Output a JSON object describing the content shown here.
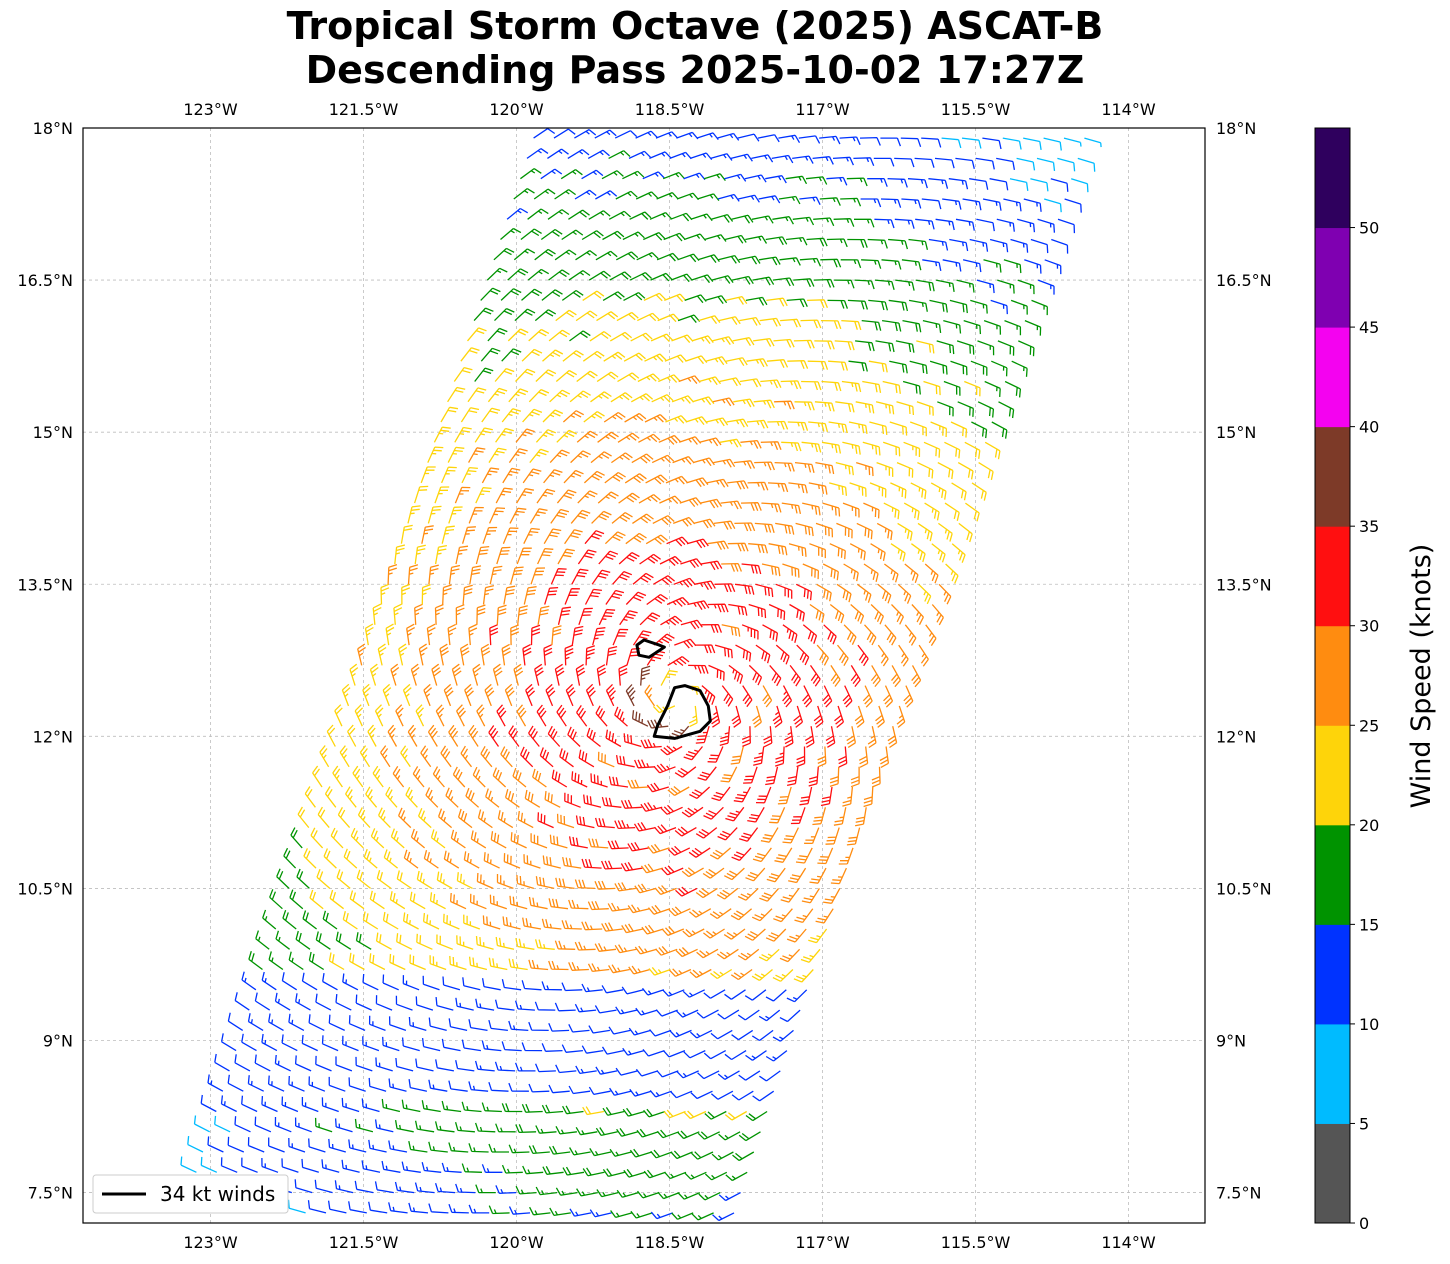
{
  "figure": {
    "title_line1": "Tropical Storm Octave (2025) ASCAT-B",
    "title_line2": "Descending Pass 2025-10-02 17:27Z"
  },
  "map": {
    "lon_range": [
      -124.25,
      -113.25
    ],
    "lat_range": [
      7.2,
      18.0
    ],
    "lon_ticks": [
      {
        "value": -123.0,
        "label": "123°W"
      },
      {
        "value": -121.5,
        "label": "121.5°W"
      },
      {
        "value": -120.0,
        "label": "120°W"
      },
      {
        "value": -118.5,
        "label": "118.5°W"
      },
      {
        "value": -117.0,
        "label": "117°W"
      },
      {
        "value": -115.5,
        "label": "115.5°W"
      },
      {
        "value": -114.0,
        "label": "114°W"
      }
    ],
    "lat_ticks": [
      {
        "value": 18.0,
        "label": "18°N"
      },
      {
        "value": 16.5,
        "label": "16.5°N"
      },
      {
        "value": 15.0,
        "label": "15°N"
      },
      {
        "value": 13.5,
        "label": "13.5°N"
      },
      {
        "value": 12.0,
        "label": "12°N"
      },
      {
        "value": 10.5,
        "label": "10.5°N"
      },
      {
        "value": 9.0,
        "label": "9°N"
      },
      {
        "value": 7.5,
        "label": "7.5°N"
      }
    ],
    "gridlines": true,
    "storm_center": {
      "lon": -118.45,
      "lat": 12.35
    },
    "swath": {
      "north_lon_range": [
        -119.8,
        -114.3
      ],
      "south_lon_range": [
        -123.3,
        -117.8
      ]
    }
  },
  "legend": {
    "label": "34 kt winds",
    "placement": "lower-left",
    "line_color": "#000000"
  },
  "contours_34kt": [
    {
      "points": [
        [
          -118.35,
          12.5
        ],
        [
          -118.2,
          12.45
        ],
        [
          -118.12,
          12.3
        ],
        [
          -118.1,
          12.15
        ],
        [
          -118.2,
          12.05
        ],
        [
          -118.45,
          11.98
        ],
        [
          -118.65,
          12.0
        ],
        [
          -118.62,
          12.1
        ],
        [
          -118.52,
          12.3
        ],
        [
          -118.45,
          12.48
        ]
      ]
    },
    {
      "points": [
        [
          -118.75,
          12.95
        ],
        [
          -118.6,
          12.9
        ],
        [
          -118.55,
          12.88
        ],
        [
          -118.7,
          12.78
        ],
        [
          -118.8,
          12.8
        ],
        [
          -118.82,
          12.9
        ]
      ]
    }
  ],
  "colorbar": {
    "label": "Wind Speed (knots)",
    "bins": [
      {
        "min": 0,
        "max": 5,
        "color": "#555555"
      },
      {
        "min": 5,
        "max": 10,
        "color": "#00bbff"
      },
      {
        "min": 10,
        "max": 15,
        "color": "#0033ff"
      },
      {
        "min": 15,
        "max": 20,
        "color": "#009300"
      },
      {
        "min": 20,
        "max": 25,
        "color": "#fed40a"
      },
      {
        "min": 25,
        "max": 30,
        "color": "#ff8c10"
      },
      {
        "min": 30,
        "max": 35,
        "color": "#ff0f10"
      },
      {
        "min": 35,
        "max": 40,
        "color": "#7d3a28"
      },
      {
        "min": 40,
        "max": 45,
        "color": "#f402f0"
      },
      {
        "min": 45,
        "max": 50,
        "color": "#7f00b1"
      },
      {
        "min": 50,
        "max": 55,
        "color": "#2f005e"
      }
    ],
    "ticks": [
      {
        "value": 0,
        "label": "0"
      },
      {
        "value": 5,
        "label": "5"
      },
      {
        "value": 10,
        "label": "10"
      },
      {
        "value": 15,
        "label": "15"
      },
      {
        "value": 20,
        "label": "20"
      },
      {
        "value": 25,
        "label": "25"
      },
      {
        "value": 30,
        "label": "30"
      },
      {
        "value": 35,
        "label": "35"
      },
      {
        "value": 40,
        "label": "40"
      },
      {
        "value": 45,
        "label": "45"
      },
      {
        "value": 50,
        "label": "50"
      }
    ]
  }
}
